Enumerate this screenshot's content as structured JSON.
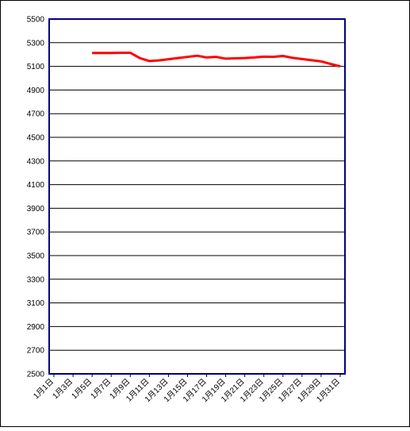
{
  "chart_data": {
    "type": "line",
    "categories": [
      "1月1日",
      null,
      "1月3日",
      null,
      "1月5日",
      null,
      "1月7日",
      null,
      "1月9日",
      null,
      "1月11日",
      null,
      "1月13日",
      null,
      "1月15日",
      null,
      "1月17日",
      null,
      "1月19日",
      null,
      "1月21日",
      null,
      "1月23日",
      null,
      "1月25日",
      null,
      "1月27日",
      null,
      "1月29日",
      null,
      "1月31日"
    ],
    "series": [
      {
        "color": "#ff0000",
        "values": [
          null,
          null,
          null,
          null,
          5213,
          5213,
          5213,
          5215,
          5215,
          5170,
          5145,
          5150,
          5160,
          5170,
          5180,
          5190,
          5175,
          5180,
          5165,
          5168,
          5170,
          5175,
          5182,
          5180,
          5188,
          5172,
          5162,
          5152,
          5142,
          5120,
          5100
        ]
      }
    ],
    "ylim": [
      2500,
      5500
    ],
    "yticks": [
      2500,
      2700,
      2900,
      3100,
      3300,
      3500,
      3700,
      3900,
      4100,
      4300,
      4500,
      4700,
      4900,
      5100,
      5300,
      5500
    ],
    "grid": true
  }
}
